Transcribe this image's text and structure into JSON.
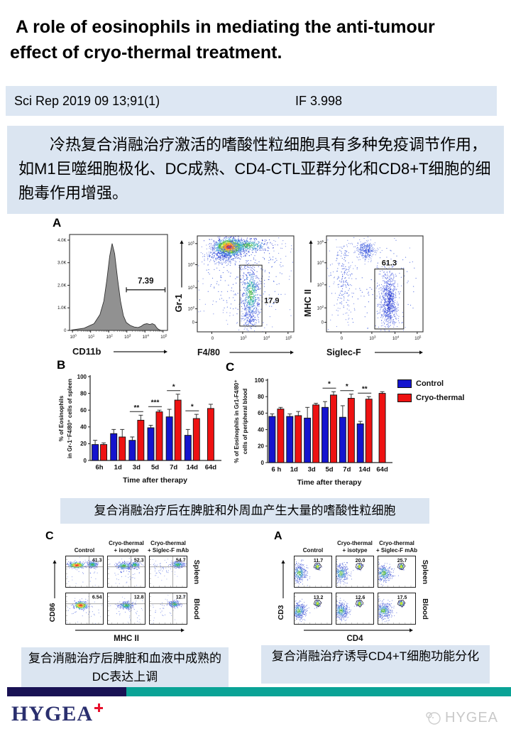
{
  "title": "A role of eosinophils in mediating the anti-tumour effect of cryo-thermal treatment.",
  "citation": {
    "journal": "Sci Rep 2019 09 13;91(1)",
    "impact_factor": "IF 3.998"
  },
  "summary": "冷热复合消融治疗激活的嗜酸性粒细胞具有多种免疫调节作用，如M1巨噬细胞极化、DC成熟、CD4-CTL亚群分化和CD8+T细胞的细胞毒作用增强。",
  "panel_labels": {
    "flow_a": "A",
    "bar_b": "B",
    "bar_c": "C"
  },
  "chart_data": [
    {
      "id": "hist_cd11b",
      "type": "area",
      "xlabel": "CD11b",
      "gate_label": "7.39",
      "y_ticks": [
        "0",
        "1.0K",
        "2.0K",
        "3.0K",
        "4.0K"
      ],
      "ylim": [
        0,
        4250
      ],
      "x_ticks": [
        "10^0",
        "10^1",
        "10^2",
        "10^3",
        "10^4",
        "10^5"
      ],
      "curve": [
        [
          0.02,
          20
        ],
        [
          0.15,
          100
        ],
        [
          0.25,
          300
        ],
        [
          0.31,
          700
        ],
        [
          0.35,
          1300
        ],
        [
          0.38,
          2200
        ],
        [
          0.41,
          3300
        ],
        [
          0.435,
          3850
        ],
        [
          0.46,
          3400
        ],
        [
          0.49,
          2300
        ],
        [
          0.52,
          1300
        ],
        [
          0.55,
          650
        ],
        [
          0.58,
          350
        ],
        [
          0.62,
          220
        ],
        [
          0.66,
          150
        ],
        [
          0.7,
          130
        ],
        [
          0.73,
          180
        ],
        [
          0.76,
          270
        ],
        [
          0.79,
          300
        ],
        [
          0.82,
          260
        ],
        [
          0.845,
          300
        ],
        [
          0.87,
          250
        ],
        [
          0.89,
          120
        ],
        [
          0.91,
          40
        ],
        [
          0.93,
          10
        ]
      ],
      "gate": {
        "x1": 0.58,
        "x2": 0.975,
        "y": 1800
      }
    },
    {
      "id": "scatter_gr1",
      "type": "scatter",
      "xlabel": "F4/80",
      "ylabel": "Gr-1",
      "gate_label": "17.9",
      "x_ticks": [
        [
          "0",
          0.15
        ],
        [
          "10^3",
          0.47
        ],
        [
          "10^4",
          0.71
        ],
        [
          "10^5",
          0.94
        ]
      ],
      "y_ticks": [
        [
          "0",
          0.1
        ],
        [
          "10^2",
          0.24
        ],
        [
          "10^3",
          0.46
        ],
        [
          "10^4",
          0.7
        ],
        [
          "10^5",
          0.92
        ]
      ],
      "gate": {
        "x": 0.44,
        "y": 0.06,
        "w": 0.23,
        "h": 0.635
      },
      "clusters": [
        [
          0.33,
          0.885,
          0.075,
          0.045,
          1300,
          "hot"
        ],
        [
          0.52,
          0.9,
          0.11,
          0.035,
          400,
          "cool"
        ],
        [
          0.26,
          0.8,
          0.1,
          0.05,
          300,
          "blue"
        ],
        [
          0.555,
          0.4,
          0.045,
          0.13,
          520,
          "cool"
        ],
        [
          0.55,
          0.15,
          0.05,
          0.07,
          160,
          "blue"
        ],
        [
          0.5,
          0.55,
          0.3,
          0.27,
          350,
          "blue"
        ]
      ]
    },
    {
      "id": "scatter_mhc",
      "type": "scatter",
      "xlabel": "Siglec-F",
      "ylabel": "MHC II",
      "gate_label": "61.3",
      "x_ticks": [
        [
          "0",
          0.15
        ],
        [
          "10^3",
          0.47
        ],
        [
          "10^4",
          0.71
        ],
        [
          "10^5",
          0.94
        ]
      ],
      "y_ticks": [
        [
          "0",
          0.1
        ],
        [
          "10^2",
          0.25
        ],
        [
          "10^3",
          0.49
        ],
        [
          "10^4",
          0.72
        ],
        [
          "10^5",
          0.93
        ]
      ],
      "gate": {
        "x": 0.5,
        "y": 0.03,
        "w": 0.3,
        "h": 0.625
      },
      "clusters": [
        [
          0.17,
          0.58,
          0.06,
          0.22,
          200,
          "blue"
        ],
        [
          0.41,
          0.85,
          0.05,
          0.05,
          280,
          "blue"
        ],
        [
          0.645,
          0.32,
          0.05,
          0.16,
          750,
          "blue2"
        ],
        [
          0.45,
          0.5,
          0.38,
          0.38,
          180,
          "blue"
        ]
      ]
    },
    {
      "id": "bar_spleen",
      "type": "bar",
      "xlabel": "Time after therapy",
      "ylabel_lines": [
        "% of Eosinophils",
        "in Gr-1⁻F4/80⁺ cells of spleen"
      ],
      "categories": [
        "6h",
        "1d",
        "3d",
        "5d",
        "7d",
        "14d",
        "64d"
      ],
      "ylim": [
        0,
        100
      ],
      "yticks": [
        0,
        20,
        40,
        60,
        80,
        100
      ],
      "series": [
        {
          "name": "Control",
          "color": "#1414CE",
          "values": [
            19,
            32,
            24,
            39,
            52,
            30,
            null
          ],
          "errors": [
            5,
            5,
            4,
            3,
            9,
            7,
            null
          ]
        },
        {
          "name": "Cryo-thermal",
          "color": "#EE1212",
          "values": [
            19,
            28,
            48,
            58,
            72,
            50,
            62
          ],
          "errors": [
            2,
            9,
            6,
            2,
            7,
            5,
            5
          ]
        }
      ],
      "significance": [
        null,
        null,
        "**",
        "***",
        "*",
        "*",
        null
      ]
    },
    {
      "id": "bar_blood",
      "type": "bar",
      "xlabel": "Time after therapy",
      "ylabel_lines": [
        "% of Eosinophils in Gr1-F4/80⁺",
        "cells of peripheral blood"
      ],
      "categories": [
        "6 h",
        "1d",
        "3d",
        "5d",
        "7d",
        "14d",
        "64d"
      ],
      "ylim": [
        0,
        100
      ],
      "yticks": [
        0,
        20,
        40,
        60,
        80,
        100
      ],
      "series": [
        {
          "name": "Control",
          "color": "#1414CE",
          "values": [
            56,
            56,
            54,
            67,
            55,
            47,
            null
          ],
          "errors": [
            3,
            3,
            13,
            7,
            14,
            3,
            null
          ]
        },
        {
          "name": "Cryo-thermal",
          "color": "#EE1212",
          "values": [
            65,
            57,
            70,
            82,
            78,
            77,
            84
          ],
          "errors": [
            2,
            5,
            2,
            4,
            5,
            3,
            2
          ]
        }
      ],
      "significance": [
        null,
        null,
        null,
        "*",
        "*",
        "**",
        null
      ]
    }
  ],
  "legend": {
    "items": [
      {
        "label": "Control",
        "color": "#1414CE"
      },
      {
        "label": "Cryo-thermal",
        "color": "#EE1212"
      }
    ]
  },
  "captions": {
    "eos": "复合消融治疗后在脾脏和外周血产生大量的嗜酸性粒细胞",
    "dc": "复合消融治疗后脾脏和血液中成熟的DC表达上调",
    "tcell": "复合消融治疗诱导CD4+T细胞功能分化"
  },
  "flow_panels": {
    "dc": {
      "label": "C",
      "xlabel": "MHC II",
      "ylabel": "CD86",
      "col_headers": [
        {
          "l1": "",
          "l2": "Control"
        },
        {
          "l1": "Cryo-thermal",
          "l2": "+ isotype"
        },
        {
          "l1": "Cryo-thermal",
          "l2": "+ Siglec-F mAb"
        }
      ],
      "row_labels": [
        "Spleen",
        "Blood"
      ],
      "values": [
        [
          "41.3",
          "52.3",
          "54.7"
        ],
        [
          "6.54",
          "12.8",
          "12.7"
        ]
      ],
      "minis": [
        [
          [
            [
              0.3,
              0.3,
              0.1,
              0.05,
              380,
              "hot"
            ],
            [
              0.71,
              0.28,
              0.07,
              0.05,
              230,
              "cool"
            ],
            [
              0.5,
              0.5,
              0.3,
              0.25,
              50,
              "blue"
            ]
          ],
          [
            [
              0.44,
              0.32,
              0.1,
              0.06,
              280,
              "cool"
            ],
            [
              0.72,
              0.29,
              0.07,
              0.05,
              210,
              "cool"
            ],
            [
              0.5,
              0.5,
              0.3,
              0.25,
              50,
              "blue"
            ]
          ],
          [
            [
              0.75,
              0.28,
              0.08,
              0.05,
              250,
              "cool"
            ],
            [
              0.35,
              0.4,
              0.18,
              0.15,
              60,
              "blue"
            ]
          ]
        ],
        [
          [
            [
              0.4,
              0.4,
              0.09,
              0.06,
              350,
              "hot"
            ],
            [
              0.5,
              0.55,
              0.3,
              0.25,
              45,
              "blue"
            ]
          ],
          [
            [
              0.5,
              0.4,
              0.09,
              0.06,
              300,
              "cool"
            ],
            [
              0.5,
              0.55,
              0.3,
              0.25,
              45,
              "blue"
            ]
          ],
          [
            [
              0.66,
              0.36,
              0.07,
              0.05,
              240,
              "cool"
            ],
            [
              0.45,
              0.5,
              0.25,
              0.2,
              40,
              "blue"
            ]
          ]
        ]
      ]
    },
    "tcell": {
      "label": "A",
      "xlabel": "CD4",
      "ylabel": "CD3",
      "col_headers": [
        {
          "l1": "",
          "l2": "Control"
        },
        {
          "l1": "Cryo-thermal",
          "l2": "+ isotype"
        },
        {
          "l1": "Cryo-thermal",
          "l2": "+ Siglec-F mAb"
        }
      ],
      "row_labels": [
        "Spleen",
        "Blood"
      ],
      "values": [
        [
          "11.7",
          "20.0",
          "25.7"
        ],
        [
          "13.2",
          "12.6",
          "17.5"
        ]
      ],
      "minis": [
        [
          [
            [
              0.14,
              0.55,
              0.1,
              0.14,
              380,
              "cool2"
            ],
            [
              0.62,
              0.34,
              0.035,
              0.05,
              110,
              "warm"
            ]
          ],
          [
            [
              0.14,
              0.55,
              0.1,
              0.14,
              380,
              "cool2"
            ],
            [
              0.62,
              0.34,
              0.035,
              0.05,
              110,
              "warm"
            ]
          ],
          [
            [
              0.16,
              0.55,
              0.11,
              0.14,
              380,
              "cool2"
            ],
            [
              0.62,
              0.34,
              0.035,
              0.05,
              110,
              "warm"
            ]
          ]
        ],
        [
          [
            [
              0.13,
              0.57,
              0.1,
              0.13,
              400,
              "cool2"
            ],
            [
              0.62,
              0.34,
              0.035,
              0.05,
              110,
              "warm"
            ]
          ],
          [
            [
              0.14,
              0.57,
              0.1,
              0.13,
              400,
              "cool2"
            ],
            [
              0.62,
              0.34,
              0.035,
              0.05,
              110,
              "warm"
            ]
          ],
          [
            [
              0.15,
              0.57,
              0.11,
              0.13,
              400,
              "cool2"
            ],
            [
              0.62,
              0.34,
              0.035,
              0.05,
              110,
              "warm"
            ]
          ]
        ]
      ]
    }
  },
  "footer": {
    "logo_text": "HYGEA",
    "logo_cross_color": "#E8112D",
    "watermark_text": "HYGEA",
    "divider": {
      "navy": "#191254",
      "teal": "#0AA396"
    }
  }
}
